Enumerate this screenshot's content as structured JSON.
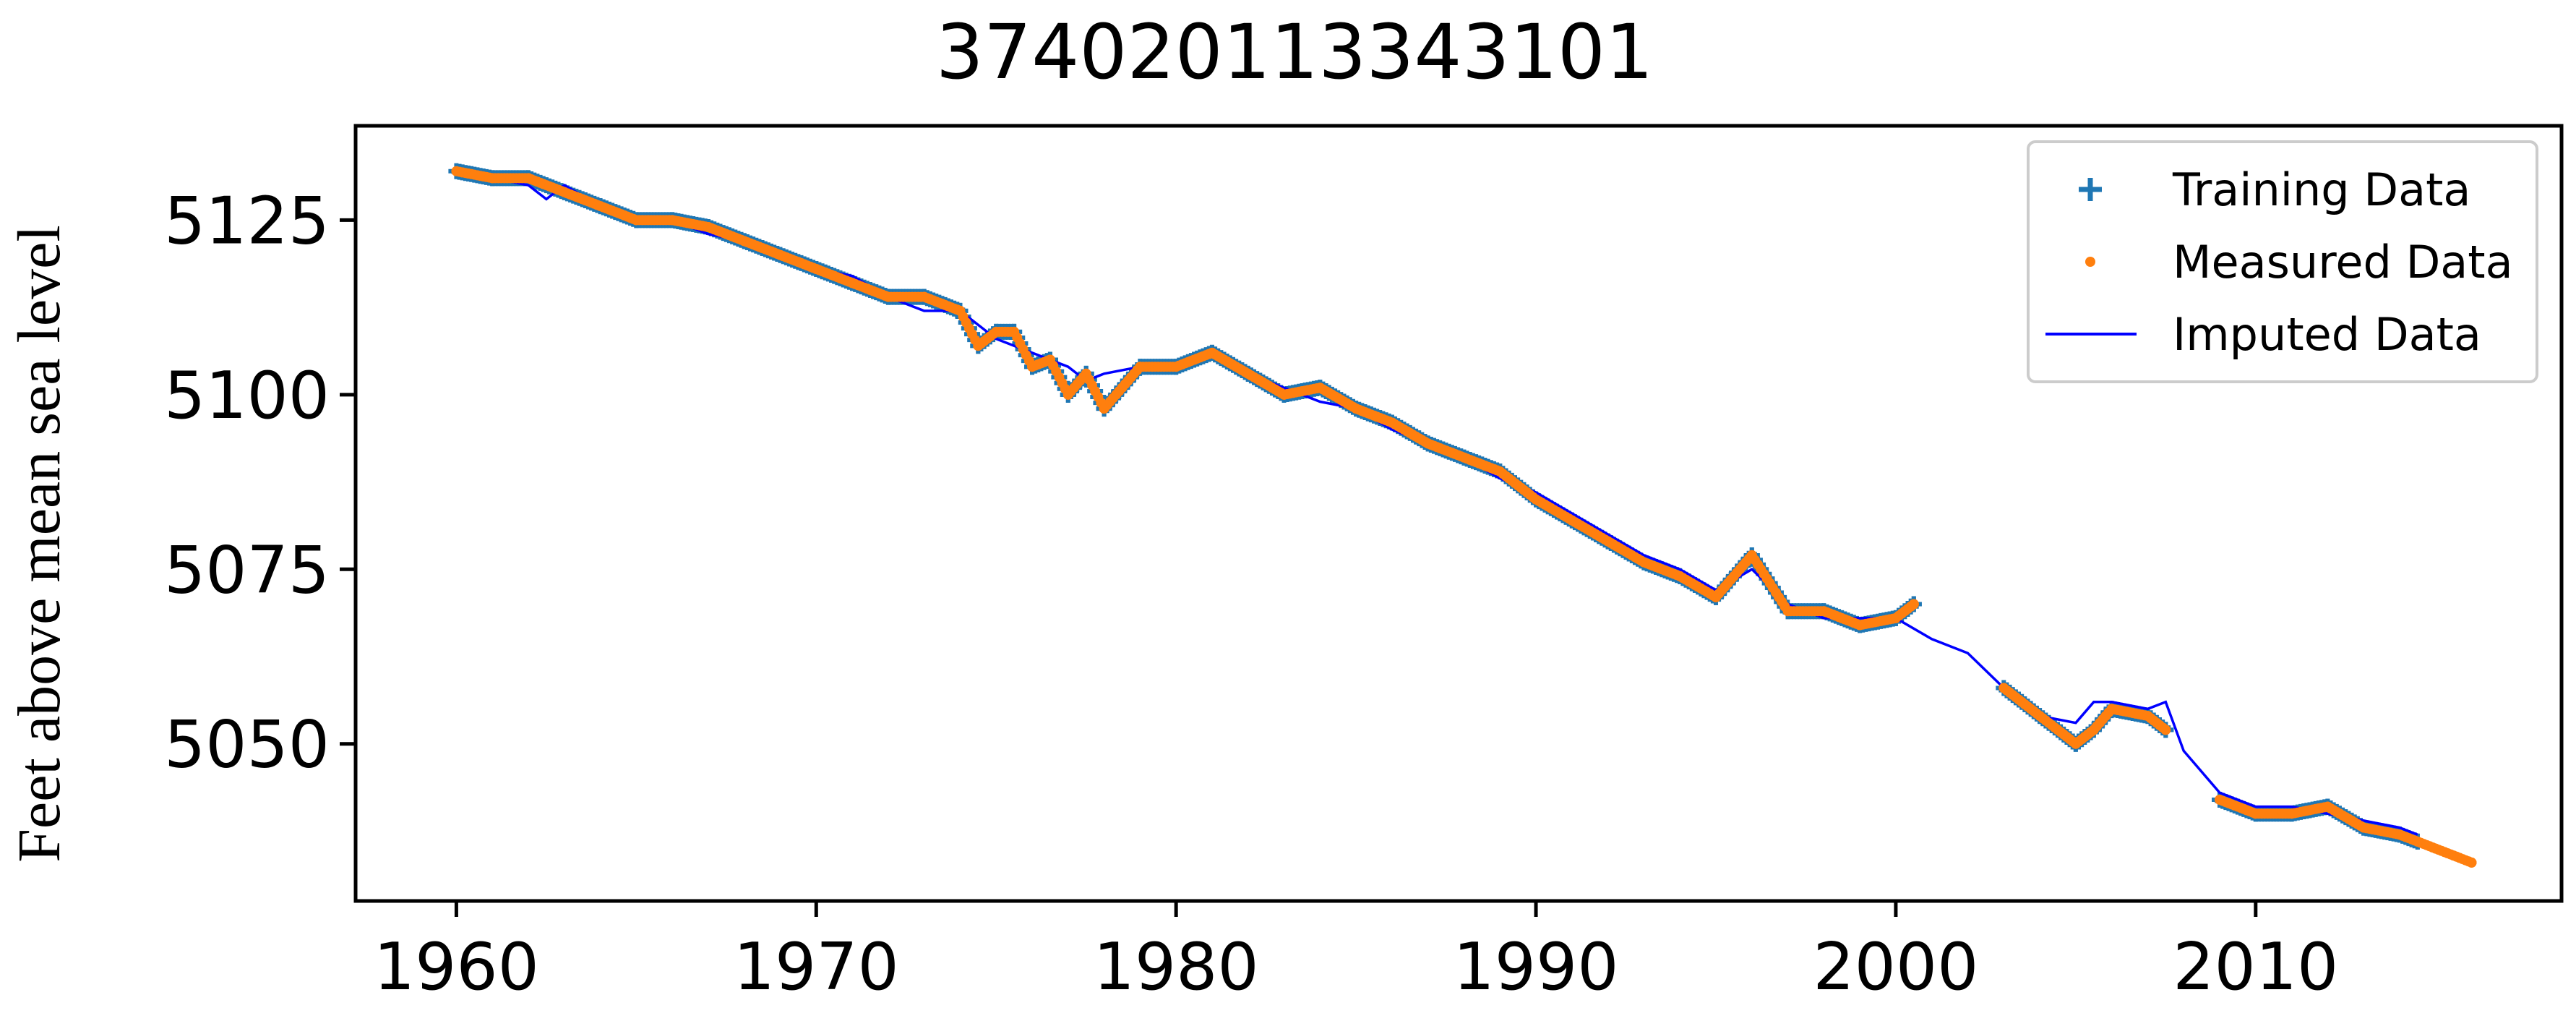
{
  "chart_data": {
    "type": "scatter",
    "title": "374020113343101",
    "xlabel": "",
    "ylabel": "Feet above mean sea level",
    "xlim": [
      1957.2,
      2018.5
    ],
    "ylim": [
      5027.5,
      5138.5
    ],
    "xticks": [
      1960,
      1970,
      1980,
      1990,
      2000,
      2010
    ],
    "yticks": [
      5050,
      5075,
      5100,
      5125
    ],
    "grid": false,
    "legend": {
      "position": "top-right",
      "entries": [
        "Training Data",
        "Measured Data",
        "Imputed Data"
      ]
    },
    "colors": {
      "training": "#1f77b4",
      "measured": "#ff7f0e",
      "imputed": "#0000ff"
    },
    "series": [
      {
        "name": "Imputed Data",
        "style": "line",
        "x": [
          1960.0,
          1961.0,
          1962.0,
          1962.5,
          1963.0,
          1964.0,
          1965.0,
          1966.0,
          1967.0,
          1968.0,
          1969.0,
          1970.0,
          1971.0,
          1972.0,
          1973.0,
          1974.0,
          1975.0,
          1976.0,
          1977.0,
          1977.5,
          1978.0,
          1979.0,
          1980.0,
          1981.0,
          1982.0,
          1983.0,
          1984.0,
          1985.0,
          1986.0,
          1987.0,
          1988.0,
          1989.0,
          1990.0,
          1991.0,
          1992.0,
          1993.0,
          1994.0,
          1995.0,
          1996.0,
          1997.0,
          1998.0,
          1999.0,
          2000.0,
          2001.0,
          2002.0,
          2003.0,
          2004.0,
          2005.0,
          2005.5,
          2006.0,
          2007.0,
          2007.5,
          2008.0,
          2009.0,
          2010.0,
          2011.0,
          2012.0,
          2013.0,
          2014.0,
          2014.5
        ],
        "y": [
          5132,
          5131,
          5130,
          5128,
          5130,
          5127,
          5125,
          5125,
          5123,
          5122,
          5120,
          5118,
          5117,
          5114,
          5112,
          5112,
          5108,
          5106,
          5104,
          5102,
          5103,
          5104,
          5104,
          5106,
          5103,
          5101,
          5099,
          5098,
          5095,
          5093,
          5091,
          5088,
          5086,
          5083,
          5080,
          5077,
          5075,
          5072,
          5075,
          5070,
          5068,
          5068,
          5068,
          5065,
          5063,
          5058,
          5054,
          5053,
          5056,
          5056,
          5055,
          5056,
          5049,
          5043,
          5041,
          5041,
          5040,
          5039,
          5038,
          5037
        ]
      },
      {
        "name": "Training Data",
        "style": "plus-markers",
        "segments": [
          {
            "x": [
              1960.0,
              1961.0,
              1962.0,
              1963.0,
              1964.0,
              1965.0,
              1966.0,
              1967.0,
              1968.0,
              1969.0,
              1970.0,
              1971.0,
              1972.0,
              1973.0,
              1974.0,
              1974.5,
              1975.0,
              1975.5,
              1976.0,
              1976.5,
              1977.0,
              1977.5,
              1978.0,
              1979.0,
              1980.0,
              1981.0,
              1982.0,
              1983.0,
              1984.0,
              1985.0,
              1986.0,
              1987.0,
              1988.0,
              1989.0,
              1990.0,
              1991.0,
              1992.0,
              1993.0,
              1994.0,
              1995.0,
              1996.0,
              1997.0,
              1998.0,
              1999.0,
              2000.0,
              2000.5
            ],
            "y": [
              5132,
              5131,
              5131,
              5129,
              5127,
              5125,
              5125,
              5124,
              5122,
              5120,
              5118,
              5116,
              5114,
              5114,
              5112,
              5107,
              5109,
              5109,
              5104,
              5105,
              5100,
              5103,
              5098,
              5104,
              5104,
              5106,
              5103,
              5100,
              5101,
              5098,
              5096,
              5093,
              5091,
              5089,
              5085,
              5082,
              5079,
              5076,
              5074,
              5071,
              5077,
              5069,
              5069,
              5067,
              5068,
              5070
            ]
          },
          {
            "x": [
              2003.0,
              2004.0,
              2005.0,
              2005.5,
              2006.0,
              2007.0,
              2007.5
            ],
            "y": [
              5058,
              5054,
              5050,
              5052,
              5055,
              5054,
              5052
            ]
          },
          {
            "x": [
              2009.0,
              2010.0,
              2011.0,
              2012.0,
              2013.0,
              2014.0,
              2014.5
            ],
            "y": [
              5042,
              5040,
              5040,
              5041,
              5038,
              5037,
              5036
            ]
          }
        ]
      },
      {
        "name": "Measured Data",
        "style": "dot-markers",
        "segments": [
          {
            "x": [
              1960.0,
              1961.0,
              1962.0,
              1963.0,
              1964.0,
              1965.0,
              1966.0,
              1967.0,
              1968.0,
              1969.0,
              1970.0,
              1971.0,
              1972.0,
              1973.0,
              1974.0,
              1974.5,
              1975.0,
              1975.5,
              1976.0,
              1976.5,
              1977.0,
              1977.5,
              1978.0,
              1979.0,
              1980.0,
              1981.0,
              1982.0,
              1983.0,
              1984.0,
              1985.0,
              1986.0,
              1987.0,
              1988.0,
              1989.0,
              1990.0,
              1991.0,
              1992.0,
              1993.0,
              1994.0,
              1995.0,
              1996.0,
              1997.0,
              1998.0,
              1999.0,
              2000.0,
              2000.5
            ],
            "y": [
              5132,
              5131,
              5131,
              5129,
              5127,
              5125,
              5125,
              5124,
              5122,
              5120,
              5118,
              5116,
              5114,
              5114,
              5112,
              5107,
              5109,
              5109,
              5104,
              5105,
              5100,
              5103,
              5098,
              5104,
              5104,
              5106,
              5103,
              5100,
              5101,
              5098,
              5096,
              5093,
              5091,
              5089,
              5085,
              5082,
              5079,
              5076,
              5074,
              5071,
              5077,
              5069,
              5069,
              5067,
              5068,
              5070
            ]
          },
          {
            "x": [
              2003.0,
              2004.0,
              2005.0,
              2005.5,
              2006.0,
              2007.0,
              2007.5
            ],
            "y": [
              5058,
              5054,
              5050,
              5052,
              5055,
              5054,
              5052
            ]
          },
          {
            "x": [
              2009.0,
              2010.0,
              2011.0,
              2012.0,
              2013.0,
              2014.0,
              2014.5,
              2015.0,
              2015.5,
              2016.0
            ],
            "y": [
              5042,
              5040,
              5040,
              5041,
              5038,
              5037,
              5036,
              5035,
              5034,
              5033
            ]
          }
        ]
      }
    ]
  }
}
